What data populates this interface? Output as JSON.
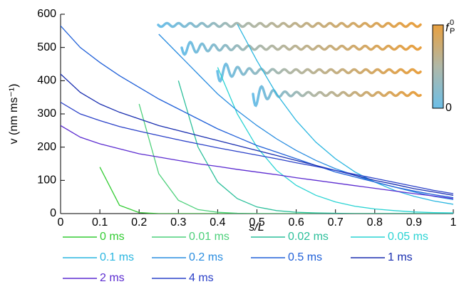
{
  "chart_data": {
    "type": "line",
    "xlabel": "s/L",
    "ylabel": "v (nm ms⁻¹)",
    "colorbar": {
      "label": "f",
      "label_sub": "P",
      "label_sup": "0",
      "tick": "0"
    },
    "xlim": [
      0,
      1
    ],
    "ylim": [
      0,
      600
    ],
    "xticks": [
      0,
      0.1,
      0.2,
      0.3,
      0.4,
      0.5,
      0.6,
      0.7,
      0.8,
      0.9,
      1
    ],
    "yticks": [
      0,
      100,
      200,
      300,
      400,
      500,
      600
    ],
    "x": [
      0,
      0.05,
      0.1,
      0.15,
      0.2,
      0.25,
      0.3,
      0.35,
      0.4,
      0.45,
      0.5,
      0.55,
      0.6,
      0.65,
      0.7,
      0.75,
      0.8,
      0.85,
      0.9,
      0.95,
      1
    ],
    "series": [
      {
        "name": "0 ms",
        "color": "#33cc33",
        "values": [
          null,
          null,
          140,
          25,
          3,
          0,
          0,
          0,
          0,
          0,
          0,
          0,
          0,
          0,
          0,
          0,
          0,
          0,
          0,
          0,
          0
        ]
      },
      {
        "name": "0.01 ms",
        "color": "#4cd07a",
        "values": [
          null,
          null,
          null,
          null,
          330,
          120,
          40,
          12,
          4,
          1,
          0,
          0,
          0,
          0,
          0,
          0,
          0,
          0,
          0,
          0,
          0
        ]
      },
      {
        "name": "0.02 ms",
        "color": "#2bbf9a",
        "values": [
          null,
          null,
          null,
          null,
          null,
          null,
          400,
          200,
          95,
          45,
          20,
          9,
          4,
          2,
          1,
          0,
          0,
          0,
          0,
          0,
          0
        ]
      },
      {
        "name": "0.05 ms",
        "color": "#29d3d3",
        "values": [
          null,
          null,
          null,
          null,
          null,
          null,
          null,
          null,
          440,
          300,
          200,
          130,
          85,
          55,
          35,
          22,
          14,
          9,
          5,
          3,
          2
        ]
      },
      {
        "name": "0.1 ms",
        "color": "#2ab6e0",
        "values": [
          null,
          null,
          null,
          null,
          null,
          null,
          null,
          null,
          null,
          570,
          460,
          360,
          280,
          215,
          165,
          125,
          95,
          70,
          52,
          38,
          28
        ]
      },
      {
        "name": "0.2 ms",
        "color": "#2a8de0",
        "values": [
          null,
          null,
          null,
          null,
          null,
          540,
          480,
          420,
          360,
          310,
          265,
          225,
          190,
          160,
          135,
          115,
          95,
          80,
          65,
          52,
          42
        ]
      },
      {
        "name": "0.5 ms",
        "color": "#2060d8",
        "values": [
          565,
          500,
          455,
          415,
          380,
          345,
          315,
          285,
          255,
          230,
          205,
          185,
          165,
          145,
          125,
          110,
          95,
          80,
          68,
          57,
          48
        ]
      },
      {
        "name": "1 ms",
        "color": "#1a2fb0",
        "values": [
          420,
          365,
          330,
          305,
          285,
          265,
          250,
          235,
          220,
          205,
          190,
          175,
          160,
          145,
          130,
          115,
          100,
          88,
          75,
          65,
          55
        ]
      },
      {
        "name": "2 ms",
        "color": "#5b2bd0",
        "values": [
          265,
          230,
          210,
          195,
          180,
          170,
          160,
          150,
          142,
          133,
          125,
          117,
          108,
          100,
          92,
          84,
          76,
          68,
          60,
          53,
          45
        ]
      },
      {
        "name": "4 ms",
        "color": "#2a40c8",
        "values": [
          335,
          300,
          280,
          262,
          248,
          235,
          222,
          210,
          198,
          187,
          176,
          165,
          153,
          142,
          130,
          118,
          106,
          94,
          82,
          70,
          60
        ]
      }
    ]
  }
}
